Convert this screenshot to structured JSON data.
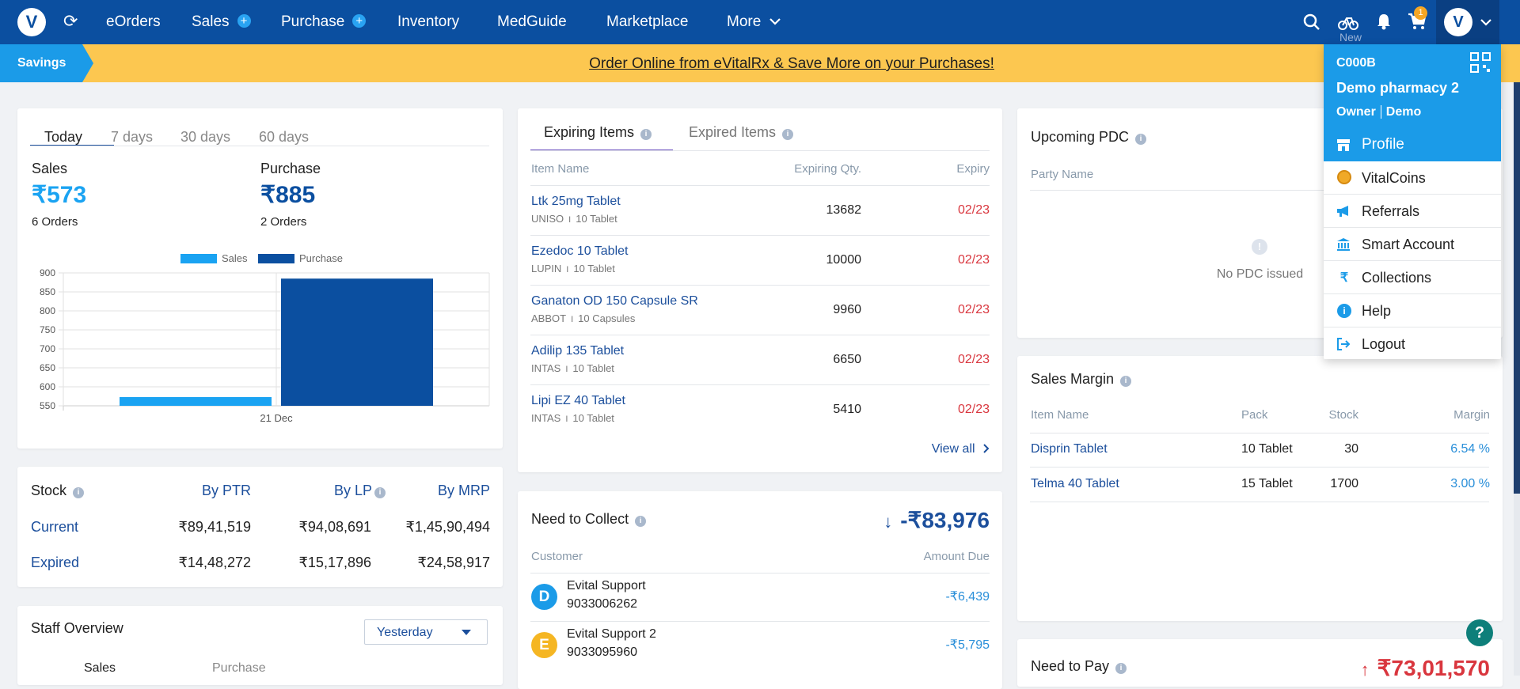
{
  "nav": {
    "logo": "V",
    "refresh": "⟳",
    "items": {
      "eorders": "eOrders",
      "sales": "Sales",
      "purchase": "Purchase",
      "inventory": "Inventory",
      "medguide": "MedGuide",
      "marketplace": "Marketplace",
      "more": "More"
    },
    "plus": "+",
    "chev": "⌄",
    "cart_count": "1",
    "new_label": "New"
  },
  "banner": {
    "savings": "Savings",
    "link": "Order Online from eVitalRx & Save More on your Purchases!"
  },
  "summary": {
    "tabs": [
      "Today",
      "7 days",
      "30 days",
      "60 days"
    ],
    "sales_label": "Sales",
    "sales_amount": "₹573",
    "sales_orders": "6 Orders",
    "purchase_label": "Purchase",
    "purchase_amount": "₹885",
    "purchase_orders": "2 Orders"
  },
  "chart_data": {
    "type": "bar",
    "categories": [
      "21 Dec"
    ],
    "series": [
      {
        "name": "Sales",
        "values": [
          573
        ],
        "color": "#1aa3f2"
      },
      {
        "name": "Purchase",
        "values": [
          885
        ],
        "color": "#0b4fa0"
      }
    ],
    "ylim": [
      550,
      900
    ],
    "yticks": [
      "900",
      "850",
      "800",
      "750",
      "700",
      "650",
      "600",
      "550"
    ],
    "legend": "top",
    "grid": true
  },
  "stock": {
    "title": "Stock",
    "cols": [
      "By PTR",
      "By LP",
      "By MRP"
    ],
    "rows": [
      {
        "label": "Current",
        "values": [
          "₹89,41,519",
          "₹94,08,691",
          "₹1,45,90,494"
        ]
      },
      {
        "label": "Expired",
        "values": [
          "₹14,48,272",
          "₹15,17,896",
          "₹24,58,917"
        ]
      }
    ]
  },
  "staff": {
    "title": "Staff Overview",
    "select": "Yesterday",
    "col1": "Sales",
    "col2": "Purchase"
  },
  "expiring": {
    "tab1": "Expiring Items",
    "tab2": "Expired Items",
    "headers": [
      "Item Name",
      "Expiring Qty.",
      "Expiry"
    ],
    "rows": [
      {
        "name": "Ltk 25mg Tablet",
        "maker": "UNISO",
        "pack": "10 Tablet",
        "qty": "13682",
        "expiry": "02/23"
      },
      {
        "name": "Ezedoc 10 Tablet",
        "maker": "LUPIN",
        "pack": "10 Tablet",
        "qty": "10000",
        "expiry": "02/23"
      },
      {
        "name": "Ganaton OD 150 Capsule SR",
        "maker": "ABBOT",
        "pack": "10 Capsules",
        "qty": "9960",
        "expiry": "02/23"
      },
      {
        "name": "Adilip 135 Tablet",
        "maker": "INTAS",
        "pack": "10 Tablet",
        "qty": "6650",
        "expiry": "02/23"
      },
      {
        "name": "Lipi EZ 40 Tablet",
        "maker": "INTAS",
        "pack": "10 Tablet",
        "qty": "5410",
        "expiry": "02/23"
      }
    ],
    "separator": "I",
    "view_all": "View all"
  },
  "collect": {
    "title": "Need to Collect",
    "total": "-₹83,976",
    "arrow": "↓",
    "headers": [
      "Customer",
      "Amount Due"
    ],
    "rows": [
      {
        "initial": "D",
        "name": "Evital Support",
        "phone": "9033006262",
        "amount": "-₹6,439",
        "color": "#1b9be8"
      },
      {
        "initial": "E",
        "name": "Evital Support 2",
        "phone": "9033095960",
        "amount": "-₹5,795",
        "color": "#f5b623"
      }
    ]
  },
  "pdc": {
    "title": "Upcoming PDC",
    "header": "Party Name",
    "empty": "No PDC issued"
  },
  "margin": {
    "title": "Sales Margin",
    "headers": [
      "Item Name",
      "Pack",
      "Stock",
      "Margin"
    ],
    "rows": [
      {
        "name": "Disprin Tablet",
        "pack": "10 Tablet",
        "stock": "30",
        "margin": "6.54 %"
      },
      {
        "name": "Telma 40 Tablet",
        "pack": "15 Tablet",
        "stock": "1700",
        "margin": "3.00 %"
      }
    ]
  },
  "pay": {
    "title": "Need to Pay",
    "total": "₹73,01,570"
  },
  "dropdown": {
    "code": "C000B",
    "name": "Demo pharmacy 2",
    "role": "Owner",
    "user": "Demo",
    "items": [
      {
        "label": "Profile",
        "icon": "store-icon"
      },
      {
        "label": "VitalCoins",
        "icon": "coin-icon"
      },
      {
        "label": "Referrals",
        "icon": "megaphone-icon"
      },
      {
        "label": "Smart Account",
        "icon": "bank-icon"
      },
      {
        "label": "Collections",
        "icon": "rupee-icon"
      },
      {
        "label": "Help",
        "icon": "info-icon"
      },
      {
        "label": "Logout",
        "icon": "logout-icon"
      }
    ]
  },
  "help_button": "?"
}
